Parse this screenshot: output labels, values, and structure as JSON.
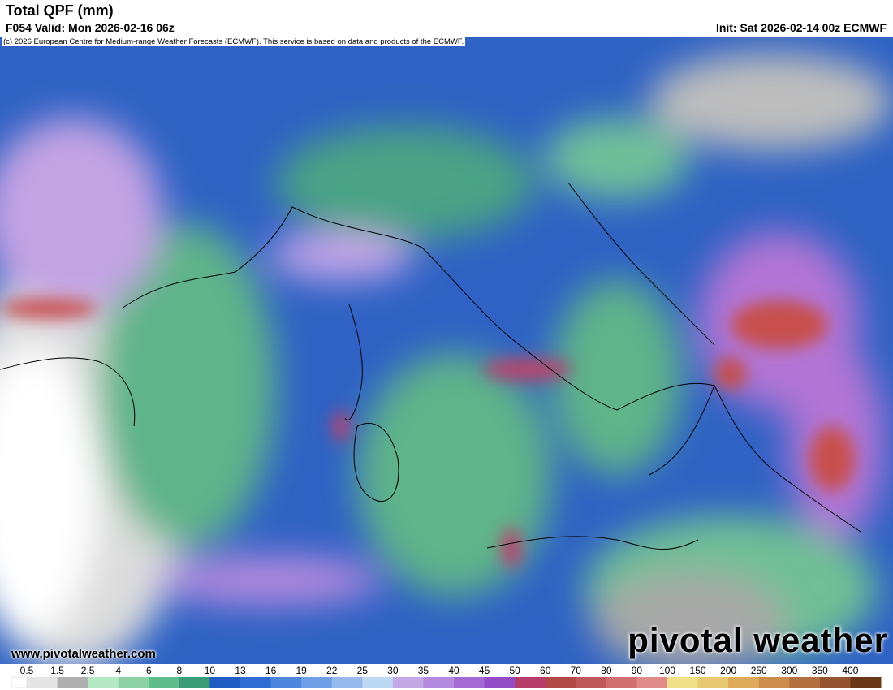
{
  "header": {
    "title": "Total QPF (mm)",
    "valid": "F054 Valid: Mon 2026-02-16 06z",
    "init": "Init: Sat 2026-02-14 00z ECMWF",
    "copyright": "(c) 2026 European Centre for Medium-range Weather Forecasts (ECMWF). This service is based on data and products of the ECMWF."
  },
  "footer": {
    "website": "www.pivotalweather.com",
    "logo": "pivotal weather"
  },
  "colorbar": {
    "labels": [
      "0.5",
      "1.5",
      "2.5",
      "4",
      "6",
      "8",
      "10",
      "13",
      "16",
      "19",
      "22",
      "25",
      "30",
      "35",
      "40",
      "45",
      "50",
      "60",
      "70",
      "80",
      "90",
      "100",
      "150",
      "200",
      "250",
      "300",
      "350",
      "400"
    ],
    "colors": [
      "#e4e4e4",
      "#b0b0b0",
      "#b4e8c2",
      "#8cd2a2",
      "#5ebd8a",
      "#3b9c78",
      "#1f5cc4",
      "#2f6dd4",
      "#4d86de",
      "#6f9fe6",
      "#96baee",
      "#bcd8f2",
      "#c4a8e6",
      "#b48ae0",
      "#a46ad6",
      "#944cc6",
      "#b83c6a",
      "#b04848",
      "#c05a5a",
      "#d07070",
      "#e08a8a",
      "#f0e08a",
      "#e8c870",
      "#deaa5c",
      "#cc8c4c",
      "#b47040",
      "#945430",
      "#6a3818"
    ]
  }
}
